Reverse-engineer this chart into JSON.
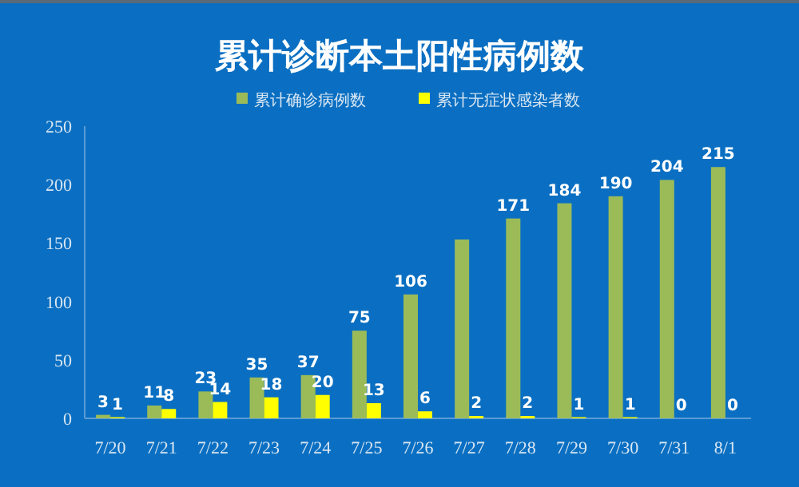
{
  "chart_data": {
    "type": "bar",
    "title": "累计诊断本土阳性病例数",
    "categories": [
      "7/20",
      "7/21",
      "7/22",
      "7/23",
      "7/24",
      "7/25",
      "7/26",
      "7/27",
      "7/28",
      "7/29",
      "7/30",
      "7/31",
      "8/1"
    ],
    "series": [
      {
        "name": "累计确诊病例数",
        "color": "#9bbb59",
        "values": [
          3,
          11,
          23,
          35,
          37,
          75,
          106,
          153,
          171,
          184,
          190,
          204,
          215
        ],
        "value_labels": [
          "3",
          "11",
          "23",
          "35",
          "37",
          "75",
          "106",
          null,
          "171",
          "184",
          "190",
          "204",
          "215"
        ]
      },
      {
        "name": "累计无症状感染者数",
        "color": "#ffff00",
        "values": [
          1,
          8,
          14,
          18,
          20,
          13,
          6,
          2,
          2,
          1,
          1,
          0,
          0
        ],
        "value_labels": [
          "1",
          "8",
          "14",
          "18",
          "20",
          "13",
          "6",
          "2",
          "2",
          "1",
          "1",
          "0",
          "0"
        ]
      }
    ],
    "ylim": [
      0,
      250
    ],
    "yticks": [
      0,
      50,
      100,
      150,
      200,
      250
    ],
    "grid": false,
    "legend": "top"
  }
}
